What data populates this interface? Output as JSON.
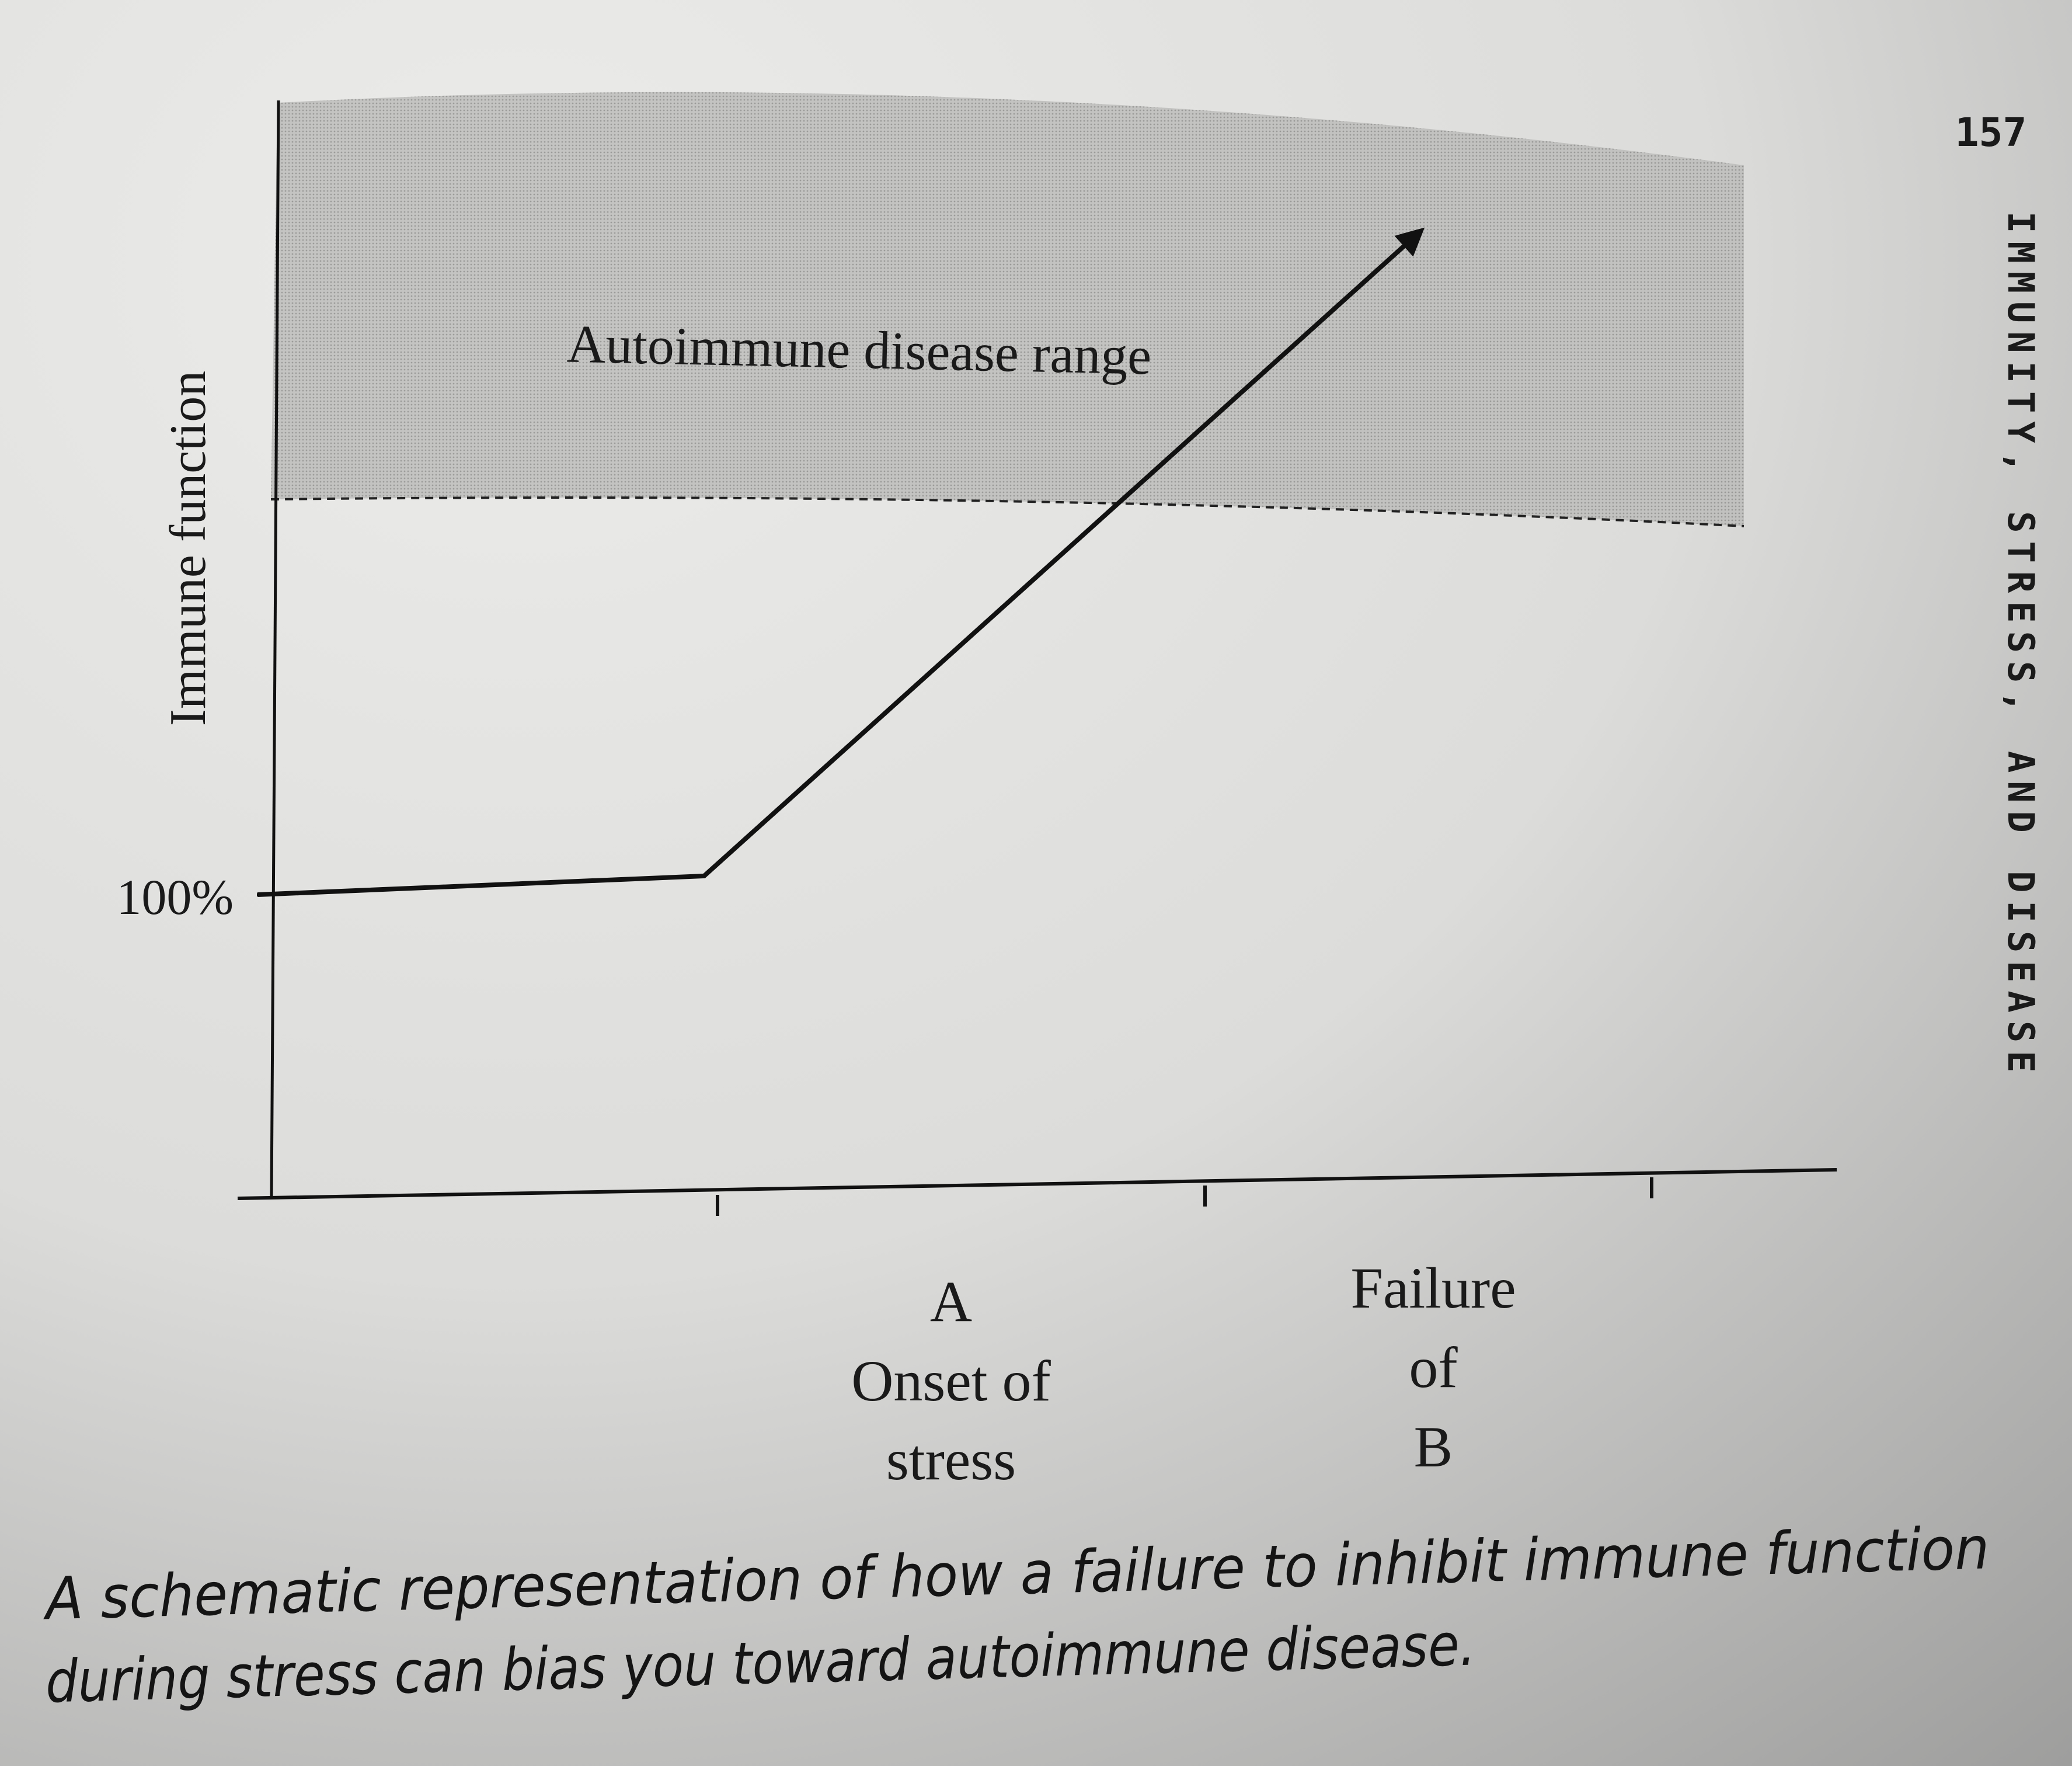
{
  "header": {
    "page_number": "157",
    "running_head": "IMMUNITY, STRESS, AND DISEASE"
  },
  "figure": {
    "y_axis_label": "Immune function",
    "y_tick_label": "100%",
    "region_label": "Autoimmune disease range",
    "x_labels": [
      {
        "lines": [
          "A",
          "Onset of",
          "stress"
        ]
      },
      {
        "lines": [
          "Failure",
          "of",
          "B"
        ]
      }
    ]
  },
  "caption": {
    "lines": [
      "A schematic representation of how a failure to inhibit immune function",
      "during stress can bias you toward autoimmune disease."
    ]
  }
}
